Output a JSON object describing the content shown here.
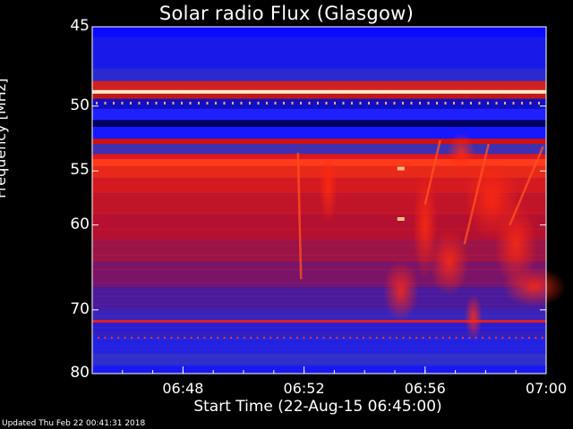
{
  "chart_data": {
    "type": "heatmap",
    "title": "Solar radio Flux (Glasgow)",
    "ylabel": "Frequency [MHz]",
    "xlabel": "Start Time (22-Aug-15 06:45:00)",
    "footer": "Updated Thu Feb 22 00:41:31 2018",
    "x_ticks": [
      "06:48",
      "06:52",
      "06:56",
      "07:00"
    ],
    "x_range_minutes": [
      0,
      15
    ],
    "y_ticks": [
      "45",
      "50",
      "55",
      "60",
      "70",
      "80"
    ],
    "y_range_mhz": [
      45,
      80
    ],
    "y_scale": "reciprocal",
    "colors": {
      "low": "#1a1aff",
      "mid": "#c01030",
      "high": "#ff3010",
      "saturated": "#ffe8c0",
      "background": "#000000"
    }
  }
}
